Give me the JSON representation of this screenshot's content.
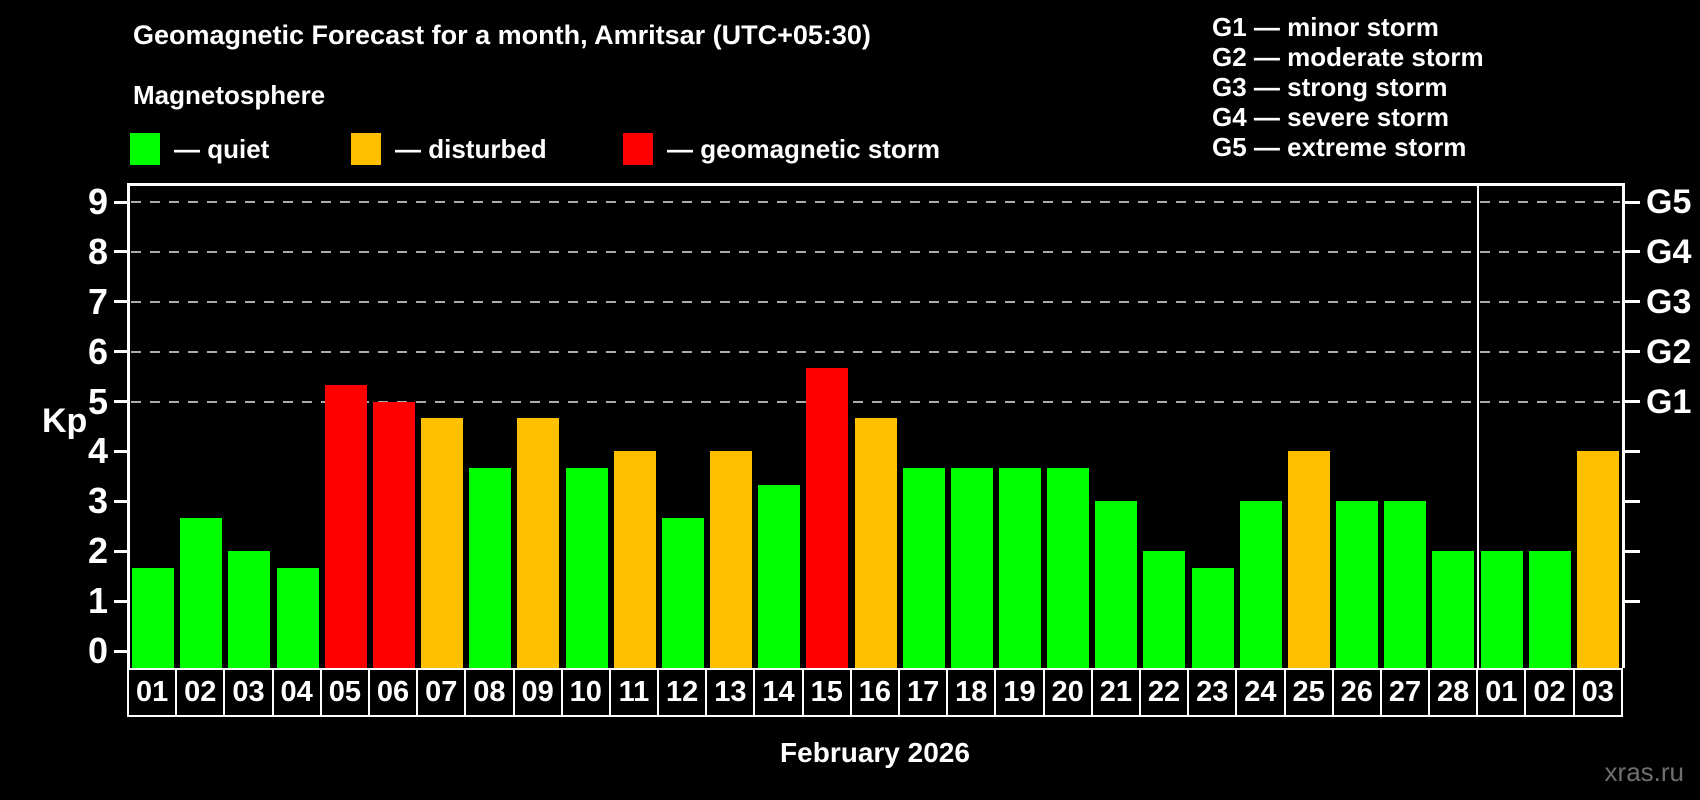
{
  "title": "Geomagnetic Forecast for a month, Amritsar (UTC+05:30)",
  "subtitle": "Magnetosphere",
  "status_legend": [
    {
      "key": "quiet",
      "label": "— quiet",
      "color": "#00ff00"
    },
    {
      "key": "disturbed",
      "label": "— disturbed",
      "color": "#ffc000"
    },
    {
      "key": "storm",
      "label": "— geomagnetic storm",
      "color": "#ff0000"
    }
  ],
  "g_scale_legend": [
    "G1 — minor storm",
    "G2 — moderate storm",
    "G3 — strong storm",
    "G4 — severe storm",
    "G5 — extreme storm"
  ],
  "watermark": "xras.ru",
  "chart_data": {
    "type": "bar",
    "title": "Geomagnetic Forecast for a month, Amritsar (UTC+05:30)",
    "ylabel": "Kp",
    "xlabel": "February 2026",
    "ylim": [
      0,
      9
    ],
    "yticks": [
      0,
      1,
      2,
      3,
      4,
      5,
      6,
      7,
      8,
      9
    ],
    "grid": "dashed horizontal lines at Kp 5 through 9 only",
    "legend_position": "top",
    "right_axis_labels": [
      {
        "kp": 5,
        "label": "G1"
      },
      {
        "kp": 6,
        "label": "G2"
      },
      {
        "kp": 7,
        "label": "G3"
      },
      {
        "kp": 8,
        "label": "G4"
      },
      {
        "kp": 9,
        "label": "G5"
      }
    ],
    "status_colors": {
      "quiet": "#00ff00",
      "disturbed": "#ffc000",
      "storm": "#ff0000"
    },
    "month_split_after": 28,
    "categories": [
      "01",
      "02",
      "03",
      "04",
      "05",
      "06",
      "07",
      "08",
      "09",
      "10",
      "11",
      "12",
      "13",
      "14",
      "15",
      "16",
      "17",
      "18",
      "19",
      "20",
      "21",
      "22",
      "23",
      "24",
      "25",
      "26",
      "27",
      "28",
      "01",
      "02",
      "03"
    ],
    "values": [
      1.67,
      2.67,
      2.0,
      1.67,
      5.33,
      5.0,
      4.67,
      3.67,
      4.67,
      3.67,
      4.0,
      2.67,
      4.0,
      3.33,
      5.67,
      4.67,
      3.67,
      3.67,
      3.67,
      3.67,
      3.0,
      2.0,
      1.67,
      3.0,
      4.0,
      3.0,
      3.0,
      2.0,
      2.0,
      2.0,
      4.0
    ],
    "statuses": [
      "quiet",
      "quiet",
      "quiet",
      "quiet",
      "storm",
      "storm",
      "disturbed",
      "quiet",
      "disturbed",
      "quiet",
      "disturbed",
      "quiet",
      "disturbed",
      "quiet",
      "storm",
      "disturbed",
      "quiet",
      "quiet",
      "quiet",
      "quiet",
      "quiet",
      "quiet",
      "quiet",
      "quiet",
      "disturbed",
      "quiet",
      "quiet",
      "quiet",
      "quiet",
      "quiet",
      "disturbed"
    ]
  }
}
